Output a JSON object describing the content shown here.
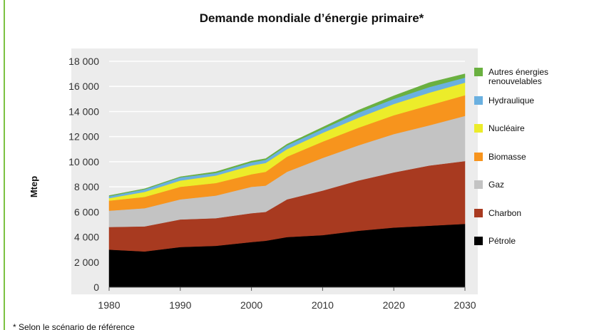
{
  "chart_data": {
    "type": "stacked_area",
    "title": "Demande mondiale d’énergie primaire*",
    "y_label": "Mtep",
    "footnote": "* Selon le scénario de référence",
    "x": [
      1980,
      1985,
      1990,
      1995,
      2000,
      2002,
      2005,
      2010,
      2015,
      2020,
      2025,
      2030
    ],
    "series": [
      {
        "name": "Pétrole",
        "color": "#000000",
        "values": [
          3000,
          2850,
          3200,
          3300,
          3600,
          3700,
          4000,
          4150,
          4500,
          4750,
          4900,
          5050
        ]
      },
      {
        "name": "Charbon",
        "color": "#a83a20",
        "values": [
          1800,
          2000,
          2200,
          2200,
          2300,
          2300,
          3000,
          3550,
          4000,
          4400,
          4800,
          5000
        ]
      },
      {
        "name": "Gaz",
        "color": "#c3c3c3",
        "values": [
          1300,
          1450,
          1600,
          1800,
          2100,
          2100,
          2200,
          2600,
          2800,
          3050,
          3200,
          3600
        ]
      },
      {
        "name": "Biomasse",
        "color": "#f7941d",
        "values": [
          800,
          900,
          1000,
          1000,
          1000,
          1100,
          1200,
          1300,
          1400,
          1500,
          1600,
          1650
        ]
      },
      {
        "name": "Nucléaire",
        "color": "#ecec2a",
        "values": [
          200,
          400,
          500,
          600,
          700,
          700,
          600,
          700,
          800,
          900,
          1000,
          1000
        ]
      },
      {
        "name": "Hydraulique",
        "color": "#6ab0e0",
        "values": [
          150,
          200,
          250,
          200,
          250,
          250,
          300,
          300,
          400,
          400,
          450,
          400
        ]
      },
      {
        "name": "Autres énergies renouvelables",
        "color": "#6ab040",
        "values": [
          50,
          50,
          50,
          100,
          100,
          100,
          100,
          150,
          200,
          250,
          350,
          300
        ]
      }
    ],
    "xlim": [
      1980,
      2030
    ],
    "xticks": [
      1980,
      1990,
      2000,
      2010,
      2020,
      2030
    ],
    "ylim": [
      0,
      18000
    ],
    "yticks": [
      0,
      {
        "value": 2000,
        "label": "2 000"
      },
      {
        "value": 4000,
        "label": "4 000"
      },
      {
        "value": 6000,
        "label": "6 000"
      },
      {
        "value": 8000,
        "label": "8 000"
      },
      {
        "value": 10000,
        "label": "10 000"
      },
      {
        "value": 12000,
        "label": "12 000"
      },
      {
        "value": 14000,
        "label": "14 000"
      },
      {
        "value": 16000,
        "label": "16 000"
      },
      {
        "value": 18000,
        "label": "18 000"
      }
    ],
    "grid": true
  }
}
